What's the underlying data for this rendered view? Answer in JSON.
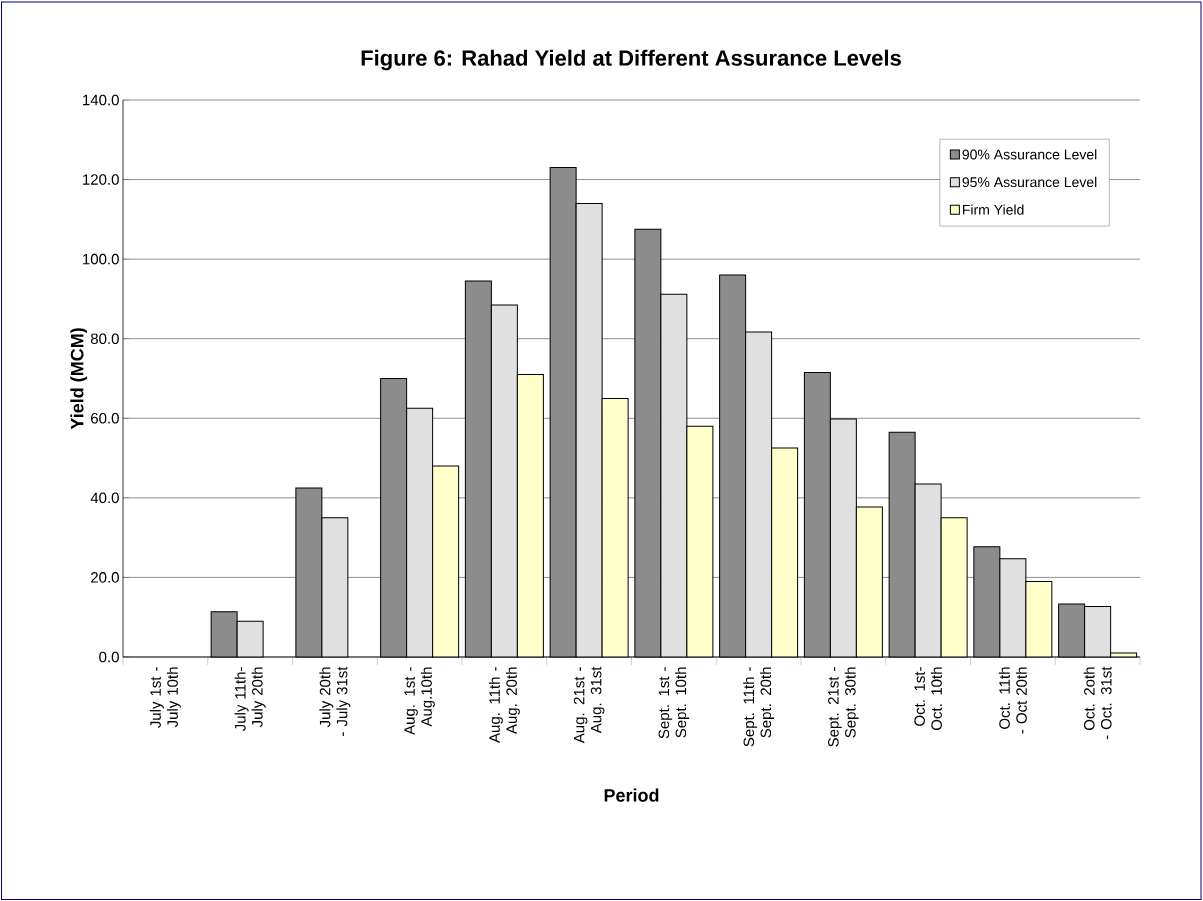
{
  "chart_data": {
    "type": "bar",
    "title": "Figure 6: Rahad Yield at Different Assurance Levels",
    "xlabel": "Period",
    "ylabel": "Yield (MCM)",
    "categories": [
      "July 1st -July 10th",
      "July 11th- July 20th",
      "July 20th - July 31st",
      "Aug. 1st -Aug.10th",
      "Aug. 11th - Aug. 20th",
      "Aug. 21st - Aug. 31st",
      "Sept. 1st -Sept. 10th",
      "Sept. 11th - Sept. 20th",
      "Sept. 21st - Sept. 30th",
      "Oct. 1st- Oct. 10th",
      "Oct. 11th - Oct 20th",
      "Oct. 2oth - Oct. 31st"
    ],
    "series": [
      {
        "name": "90% Assurance Level",
        "color": "#8c8c8c",
        "values": [
          null,
          11.4,
          42.5,
          70.0,
          94.5,
          123.0,
          107.5,
          96.0,
          71.5,
          56.5,
          27.7,
          13.3
        ]
      },
      {
        "name": "95% Assurance Level",
        "color": "#e0e0e0",
        "values": [
          null,
          9.0,
          35.0,
          62.5,
          88.5,
          114.0,
          91.2,
          81.7,
          59.8,
          43.5,
          24.7,
          12.7
        ]
      },
      {
        "name": "Firm Yield",
        "color": "#ffffcc",
        "values": [
          null,
          null,
          null,
          48.0,
          71.0,
          65.0,
          58.0,
          52.5,
          37.7,
          35.0,
          19.0,
          1.0
        ]
      }
    ],
    "ylim": [
      0,
      140
    ],
    "yticks": [
      {
        "value": 0,
        "label": "0.0"
      },
      {
        "value": 20,
        "label": "20.0"
      },
      {
        "value": 40,
        "label": "40.0"
      },
      {
        "value": 60,
        "label": "60.0"
      },
      {
        "value": 80,
        "label": "80.0"
      },
      {
        "value": 100,
        "label": "100.0"
      },
      {
        "value": 120,
        "label": "120.0"
      },
      {
        "value": 140,
        "label": "140.0"
      }
    ],
    "grid": "y",
    "legend": "top right"
  }
}
